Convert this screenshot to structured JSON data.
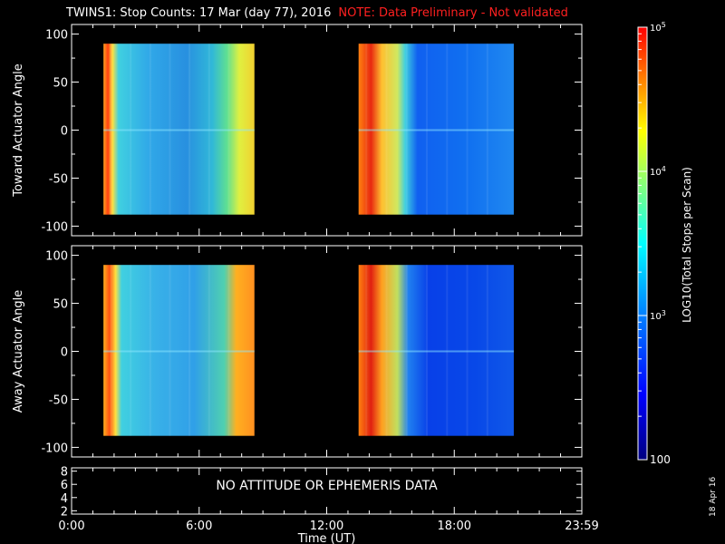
{
  "header": {
    "title": "TWINS1: Stop Counts: 17 Mar (day  77), 2016",
    "note": "NOTE: Data Preliminary - Not validated"
  },
  "datestamp": "18 Apr 16",
  "colors": {
    "note": "#ff2020",
    "axes": "#ffffff",
    "background": "#000000"
  },
  "chart_data": [
    {
      "type": "heatmap",
      "ylabel": "Toward Actuator Angle",
      "ylim": [
        -110,
        110
      ],
      "yticks": [
        "100",
        "50",
        "0",
        "-50",
        "-100"
      ],
      "xlim": [
        0,
        24
      ],
      "xticks": [
        "0:00",
        "6:00",
        "12:00",
        "18:00",
        "23:59"
      ],
      "data_intervals_hours": [
        [
          1.5,
          8.6
        ],
        [
          13.5,
          20.8
        ]
      ],
      "angle_range": [
        -88,
        90
      ]
    },
    {
      "type": "heatmap",
      "ylabel": "Away Actuator Angle",
      "ylim": [
        -110,
        110
      ],
      "yticks": [
        "100",
        "50",
        "0",
        "-50",
        "-100"
      ],
      "xlim": [
        0,
        24
      ],
      "xticks": [
        "0:00",
        "6:00",
        "12:00",
        "18:00",
        "23:59"
      ],
      "data_intervals_hours": [
        [
          1.5,
          8.6
        ],
        [
          13.5,
          20.8
        ]
      ],
      "angle_range": [
        -88,
        90
      ]
    },
    {
      "type": "line",
      "ylim": [
        1.5,
        8.5
      ],
      "yticks": [
        "8",
        "6",
        "4",
        "2"
      ],
      "annotation": "NO ATTITUDE OR EPHEMERIS DATA",
      "xlabel": "Time (UT)",
      "xticks": [
        "0:00",
        "6:00",
        "12:00",
        "18:00",
        "23:59"
      ]
    }
  ],
  "colorbar": {
    "label": "LOG10(Total Stops per Scan)",
    "scale": "log",
    "range": [
      100,
      100000
    ],
    "tick_labels": [
      "10^5",
      "10^4",
      "10^3",
      "100"
    ]
  }
}
